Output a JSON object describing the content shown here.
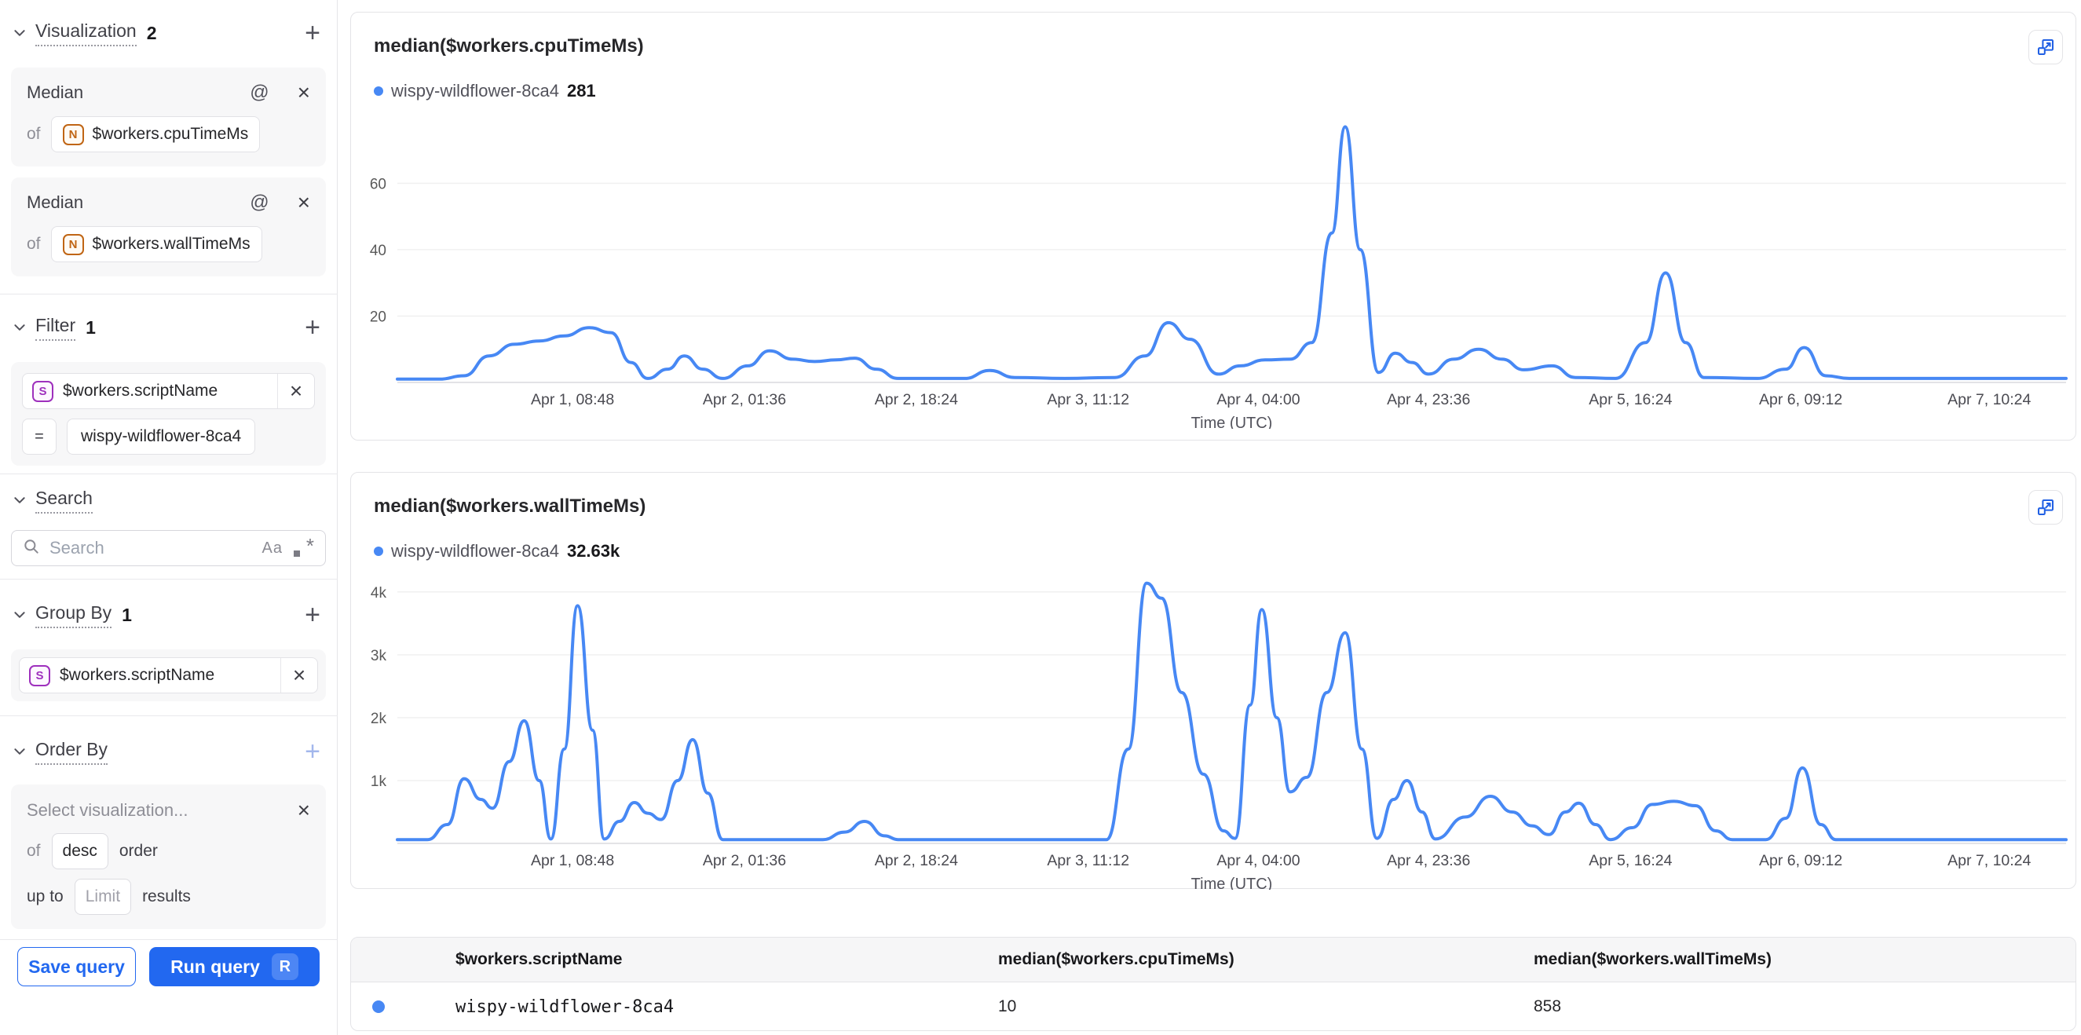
{
  "icons": {
    "plus": "+",
    "close": "×",
    "at": "@",
    "equals": "=",
    "case_sensitive": "Aa",
    "regex_asterisk": "*"
  },
  "colors": {
    "series_blue": "#4788f4",
    "accent_blue": "#2268f0",
    "number_badge_orange": "#c06514",
    "string_badge_purple": "#9e30bd",
    "grid_line": "#f0f0f0"
  },
  "sidebar": {
    "visualization": {
      "label": "Visualization",
      "count": "2",
      "items": [
        {
          "title": "Median",
          "of_label": "of",
          "type": "N",
          "field": "$workers.cpuTimeMs"
        },
        {
          "title": "Median",
          "of_label": "of",
          "type": "N",
          "field": "$workers.wallTimeMs"
        }
      ]
    },
    "filter": {
      "label": "Filter",
      "count": "1",
      "type": "S",
      "field": "$workers.scriptName",
      "operator": "=",
      "value": "wispy-wildflower-8ca4"
    },
    "search": {
      "label": "Search",
      "placeholder": "Search"
    },
    "group_by": {
      "label": "Group By",
      "count": "1",
      "type": "S",
      "field": "$workers.scriptName"
    },
    "order_by": {
      "label": "Order By",
      "placeholder": "Select visualization...",
      "of_label": "of",
      "direction": "desc",
      "order_label": "order",
      "up_to_label": "up to",
      "limit_placeholder": "Limit",
      "results_label": "results"
    },
    "actions": {
      "save": "Save query",
      "run": "Run query",
      "run_shortcut": "R"
    }
  },
  "chart_data": [
    {
      "type": "line",
      "title": "median($workers.cpuTimeMs)",
      "xlabel": "Time (UTC)",
      "grid": true,
      "legend_position": "top-left",
      "ylim": [
        0,
        79
      ],
      "y_ticks": [
        {
          "label": "20",
          "value": 20
        },
        {
          "label": "40",
          "value": 40
        },
        {
          "label": "60",
          "value": 60
        }
      ],
      "x_ticks": [
        {
          "label": "Apr 1, 08:48",
          "pos": 0.105
        },
        {
          "label": "Apr 2, 01:36",
          "pos": 0.208
        },
        {
          "label": "Apr 2, 18:24",
          "pos": 0.311
        },
        {
          "label": "Apr 3, 11:12",
          "pos": 0.414
        },
        {
          "label": "Apr 4, 04:00",
          "pos": 0.516
        },
        {
          "label": "Apr 4, 23:36",
          "pos": 0.618
        },
        {
          "label": "Apr 5, 16:24",
          "pos": 0.739
        },
        {
          "label": "Apr 6, 09:12",
          "pos": 0.841
        },
        {
          "label": "Apr 7, 10:24",
          "pos": 0.954
        }
      ],
      "series": [
        {
          "name": "wispy-wildflower-8ca4",
          "legend_value": "281",
          "color": "#4788f4",
          "points": [
            [
              0,
              1
            ],
            [
              0.025,
              1
            ],
            [
              0.04,
              2
            ],
            [
              0.055,
              8
            ],
            [
              0.07,
              11.5
            ],
            [
              0.085,
              12.5
            ],
            [
              0.1,
              14
            ],
            [
              0.115,
              16.5
            ],
            [
              0.128,
              15
            ],
            [
              0.14,
              6
            ],
            [
              0.15,
              1.2
            ],
            [
              0.162,
              4
            ],
            [
              0.172,
              8
            ],
            [
              0.183,
              4
            ],
            [
              0.195,
              1.2
            ],
            [
              0.21,
              5
            ],
            [
              0.223,
              9.5
            ],
            [
              0.237,
              7
            ],
            [
              0.25,
              6.3
            ],
            [
              0.263,
              6.8
            ],
            [
              0.274,
              7.3
            ],
            [
              0.287,
              4
            ],
            [
              0.3,
              1.2
            ],
            [
              0.34,
              1.2
            ],
            [
              0.355,
              3.6
            ],
            [
              0.37,
              1.5
            ],
            [
              0.4,
              1.2
            ],
            [
              0.43,
              1.5
            ],
            [
              0.448,
              8
            ],
            [
              0.462,
              18
            ],
            [
              0.475,
              13
            ],
            [
              0.492,
              2.5
            ],
            [
              0.505,
              5
            ],
            [
              0.52,
              6.8
            ],
            [
              0.535,
              7
            ],
            [
              0.548,
              12
            ],
            [
              0.56,
              45
            ],
            [
              0.568,
              77
            ],
            [
              0.577,
              40
            ],
            [
              0.588,
              3
            ],
            [
              0.598,
              8.8
            ],
            [
              0.608,
              6
            ],
            [
              0.618,
              2.5
            ],
            [
              0.633,
              7
            ],
            [
              0.648,
              10
            ],
            [
              0.662,
              7
            ],
            [
              0.675,
              3.8
            ],
            [
              0.692,
              5
            ],
            [
              0.706,
              1.5
            ],
            [
              0.73,
              1.2
            ],
            [
              0.748,
              12
            ],
            [
              0.76,
              33
            ],
            [
              0.772,
              12
            ],
            [
              0.783,
              1.5
            ],
            [
              0.815,
              1.2
            ],
            [
              0.832,
              4
            ],
            [
              0.843,
              10.5
            ],
            [
              0.856,
              2
            ],
            [
              0.87,
              1.2
            ],
            [
              0.93,
              1.2
            ],
            [
              1,
              1.2
            ]
          ]
        }
      ]
    },
    {
      "type": "line",
      "title": "median($workers.wallTimeMs)",
      "xlabel": "Time (UTC)",
      "grid": true,
      "legend_position": "top-left",
      "ylim": [
        0,
        4160
      ],
      "y_ticks": [
        {
          "label": "1k",
          "value": 1000
        },
        {
          "label": "2k",
          "value": 2000
        },
        {
          "label": "3k",
          "value": 3000
        },
        {
          "label": "4k",
          "value": 4000
        }
      ],
      "x_ticks": [
        {
          "label": "Apr 1, 08:48",
          "pos": 0.105
        },
        {
          "label": "Apr 2, 01:36",
          "pos": 0.208
        },
        {
          "label": "Apr 2, 18:24",
          "pos": 0.311
        },
        {
          "label": "Apr 3, 11:12",
          "pos": 0.414
        },
        {
          "label": "Apr 4, 04:00",
          "pos": 0.516
        },
        {
          "label": "Apr 4, 23:36",
          "pos": 0.618
        },
        {
          "label": "Apr 5, 16:24",
          "pos": 0.739
        },
        {
          "label": "Apr 6, 09:12",
          "pos": 0.841
        },
        {
          "label": "Apr 7, 10:24",
          "pos": 0.954
        }
      ],
      "series": [
        {
          "name": "wispy-wildflower-8ca4",
          "legend_value": "32.63k",
          "color": "#4788f4",
          "points": [
            [
              0,
              60
            ],
            [
              0.018,
              60
            ],
            [
              0.03,
              300
            ],
            [
              0.04,
              1030
            ],
            [
              0.05,
              700
            ],
            [
              0.057,
              560
            ],
            [
              0.067,
              1300
            ],
            [
              0.076,
              1950
            ],
            [
              0.085,
              1000
            ],
            [
              0.092,
              70
            ],
            [
              0.1,
              1500
            ],
            [
              0.108,
              3780
            ],
            [
              0.117,
              1800
            ],
            [
              0.124,
              70
            ],
            [
              0.133,
              350
            ],
            [
              0.142,
              650
            ],
            [
              0.15,
              480
            ],
            [
              0.158,
              380
            ],
            [
              0.168,
              1000
            ],
            [
              0.177,
              1650
            ],
            [
              0.186,
              800
            ],
            [
              0.195,
              60
            ],
            [
              0.255,
              60
            ],
            [
              0.268,
              180
            ],
            [
              0.28,
              350
            ],
            [
              0.292,
              120
            ],
            [
              0.3,
              60
            ],
            [
              0.425,
              60
            ],
            [
              0.438,
              1500
            ],
            [
              0.449,
              4140
            ],
            [
              0.458,
              3900
            ],
            [
              0.47,
              2400
            ],
            [
              0.483,
              1100
            ],
            [
              0.495,
              200
            ],
            [
              0.502,
              80
            ],
            [
              0.511,
              2200
            ],
            [
              0.518,
              3720
            ],
            [
              0.527,
              2000
            ],
            [
              0.535,
              820
            ],
            [
              0.545,
              1050
            ],
            [
              0.557,
              2400
            ],
            [
              0.568,
              3350
            ],
            [
              0.578,
              1500
            ],
            [
              0.587,
              80
            ],
            [
              0.597,
              700
            ],
            [
              0.605,
              1000
            ],
            [
              0.614,
              500
            ],
            [
              0.622,
              70
            ],
            [
              0.64,
              420
            ],
            [
              0.655,
              750
            ],
            [
              0.668,
              500
            ],
            [
              0.68,
              280
            ],
            [
              0.69,
              140
            ],
            [
              0.7,
              500
            ],
            [
              0.708,
              640
            ],
            [
              0.718,
              300
            ],
            [
              0.727,
              60
            ],
            [
              0.74,
              250
            ],
            [
              0.752,
              620
            ],
            [
              0.765,
              670
            ],
            [
              0.778,
              600
            ],
            [
              0.79,
              200
            ],
            [
              0.8,
              60
            ],
            [
              0.82,
              60
            ],
            [
              0.832,
              400
            ],
            [
              0.842,
              1200
            ],
            [
              0.853,
              300
            ],
            [
              0.862,
              60
            ],
            [
              0.93,
              60
            ],
            [
              1,
              60
            ]
          ]
        }
      ]
    }
  ],
  "table": {
    "columns": [
      "$workers.scriptName",
      "median($workers.cpuTimeMs)",
      "median($workers.wallTimeMs)"
    ],
    "rows": [
      {
        "cells": [
          "wispy-wildflower-8ca4",
          "10",
          "858"
        ]
      }
    ]
  }
}
